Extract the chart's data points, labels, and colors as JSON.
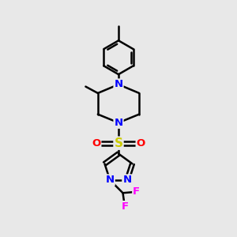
{
  "background_color": "#e8e8e8",
  "bond_color": "#000000",
  "atom_colors": {
    "N": "#0000ff",
    "O": "#ff0000",
    "S": "#cccc00",
    "F": "#ff00ff",
    "C": "#000000",
    "H": "#000000"
  },
  "title": "",
  "figsize": [
    3.0,
    3.0
  ],
  "dpi": 100
}
